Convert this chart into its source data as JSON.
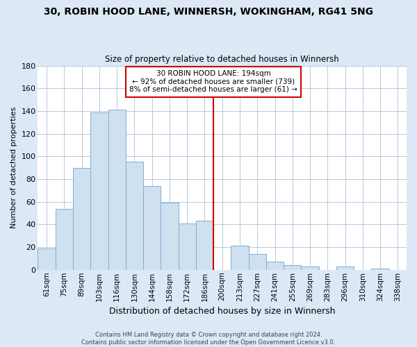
{
  "title": "30, ROBIN HOOD LANE, WINNERSH, WOKINGHAM, RG41 5NG",
  "subtitle": "Size of property relative to detached houses in Winnersh",
  "xlabel": "Distribution of detached houses by size in Winnersh",
  "ylabel": "Number of detached properties",
  "bar_labels": [
    "61sqm",
    "75sqm",
    "89sqm",
    "103sqm",
    "116sqm",
    "130sqm",
    "144sqm",
    "158sqm",
    "172sqm",
    "186sqm",
    "200sqm",
    "213sqm",
    "227sqm",
    "241sqm",
    "255sqm",
    "269sqm",
    "283sqm",
    "296sqm",
    "310sqm",
    "324sqm",
    "338sqm"
  ],
  "bar_values": [
    19,
    54,
    90,
    139,
    141,
    95,
    74,
    59,
    41,
    43,
    0,
    21,
    14,
    7,
    4,
    3,
    0,
    3,
    0,
    1,
    0
  ],
  "bar_color": "#cfe0f0",
  "bar_edge_color": "#7ab0d8",
  "highlight_line_color": "#cc0000",
  "annotation_text": "30 ROBIN HOOD LANE: 194sqm\n← 92% of detached houses are smaller (739)\n8% of semi-detached houses are larger (61) →",
  "annotation_box_color": "#ffffff",
  "annotation_box_edge": "#cc0000",
  "ylim": [
    0,
    180
  ],
  "yticks": [
    0,
    20,
    40,
    60,
    80,
    100,
    120,
    140,
    160,
    180
  ],
  "footer_line1": "Contains HM Land Registry data © Crown copyright and database right 2024.",
  "footer_line2": "Contains public sector information licensed under the Open Government Licence v3.0.",
  "bg_color": "#dce8f5",
  "plot_bg_color": "#ffffff",
  "grid_color": "#b8c8dc"
}
